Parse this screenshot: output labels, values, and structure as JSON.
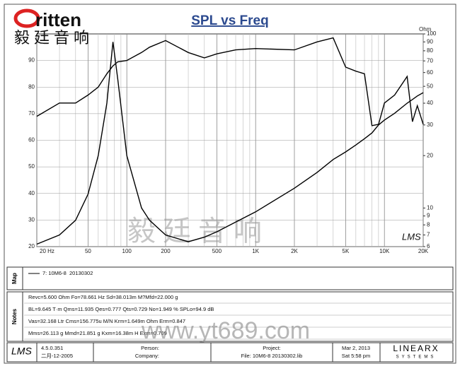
{
  "logo": {
    "brand": "ritten",
    "chinese": "毅廷音响"
  },
  "watermark": {
    "chinese": "毅廷音响",
    "url": "www.yt689.com"
  },
  "chart_data": {
    "type": "line",
    "title": "SPL vs Freq",
    "y2_label": "Ohm",
    "plot_logo": "LMS",
    "xscale": "log",
    "y2scale": "log",
    "grid": true,
    "x": [
      20,
      30,
      40,
      50,
      60,
      70,
      78,
      85,
      100,
      130,
      150,
      200,
      300,
      400,
      500,
      700,
      1000,
      2000,
      3000,
      4000,
      5000,
      6000,
      7000,
      8000,
      9000,
      10000,
      12000,
      15000,
      16500,
      18000,
      20000
    ],
    "series": [
      {
        "color": "#000000",
        "values": [
          69,
          74,
          74,
          77,
          80,
          85,
          88,
          89.5,
          90,
          93,
          95,
          97.5,
          93,
          91,
          92.5,
          94,
          94.5,
          94,
          97,
          98.5,
          87.5,
          86,
          85,
          65.5,
          66,
          74,
          77,
          84,
          67,
          73,
          66
        ]
      },
      {
        "color": "#000000",
        "axis": "y2",
        "values": [
          6.2,
          7,
          8.5,
          12,
          20,
          40,
          90,
          55,
          20,
          10,
          8.5,
          7,
          6.4,
          6.8,
          7.3,
          8.3,
          9.5,
          13,
          16,
          19,
          21,
          23,
          25,
          27,
          30,
          32,
          35,
          40,
          42,
          44,
          46
        ]
      }
    ],
    "xlim": [
      20,
      20000
    ],
    "xticks": [
      {
        "value": 20,
        "label": "20 Hz"
      },
      50,
      100,
      200,
      500,
      {
        "value": 1000,
        "label": "1K"
      },
      {
        "value": 2000,
        "label": "2K"
      },
      {
        "value": 5000,
        "label": "5K"
      },
      {
        "value": 10000,
        "label": "10K"
      },
      {
        "value": 20000,
        "label": "20K"
      }
    ],
    "x_minor_grid": [
      30,
      40,
      60,
      70,
      80,
      90,
      300,
      400,
      600,
      700,
      800,
      900,
      3000,
      4000,
      6000,
      7000,
      8000,
      9000
    ],
    "ylim": [
      20,
      100
    ],
    "yticks": [
      20,
      30,
      40,
      50,
      60,
      70,
      80,
      90
    ],
    "y2lim": [
      6,
      100
    ],
    "y2ticks": [
      6,
      7,
      8,
      9,
      10,
      20,
      30,
      40,
      50,
      60,
      70,
      80,
      90,
      100
    ]
  },
  "map": {
    "label": "Map",
    "entry": "7: 10M6-8",
    "date": "20130302"
  },
  "notes": {
    "label": "Notes",
    "lines": [
      "Revc=5.600 Ohm  Fo=78.661 Hz  Sd=38.013m M?Mfd=22.000 g",
      "BL=9.645 T·m  Qms=11.935  Qes=0.777  Qts=0.729  No=1.949 %  SPLo=94.9 dB",
      "Vas=32.168 Ltr  Cms=156.775u M/N  Krm=1.649m Ohm  Erm=0.847",
      "Mms=26.113 g  Mmd=21.851 g  Kxm=16.38m H  Exm=0.709"
    ]
  },
  "footer": {
    "logo": "LMS",
    "version": "4.5.0.351",
    "build_date": "二月-12-2005",
    "person": "Person:",
    "company": "Company:",
    "project": "Project:",
    "file": "File: 10M6-8 20130302.lib",
    "date": "Mar 2, 2013",
    "time": "Sat  5:58 pm",
    "brand": "LINEARX",
    "brand_sub": "SYSTEMS"
  }
}
